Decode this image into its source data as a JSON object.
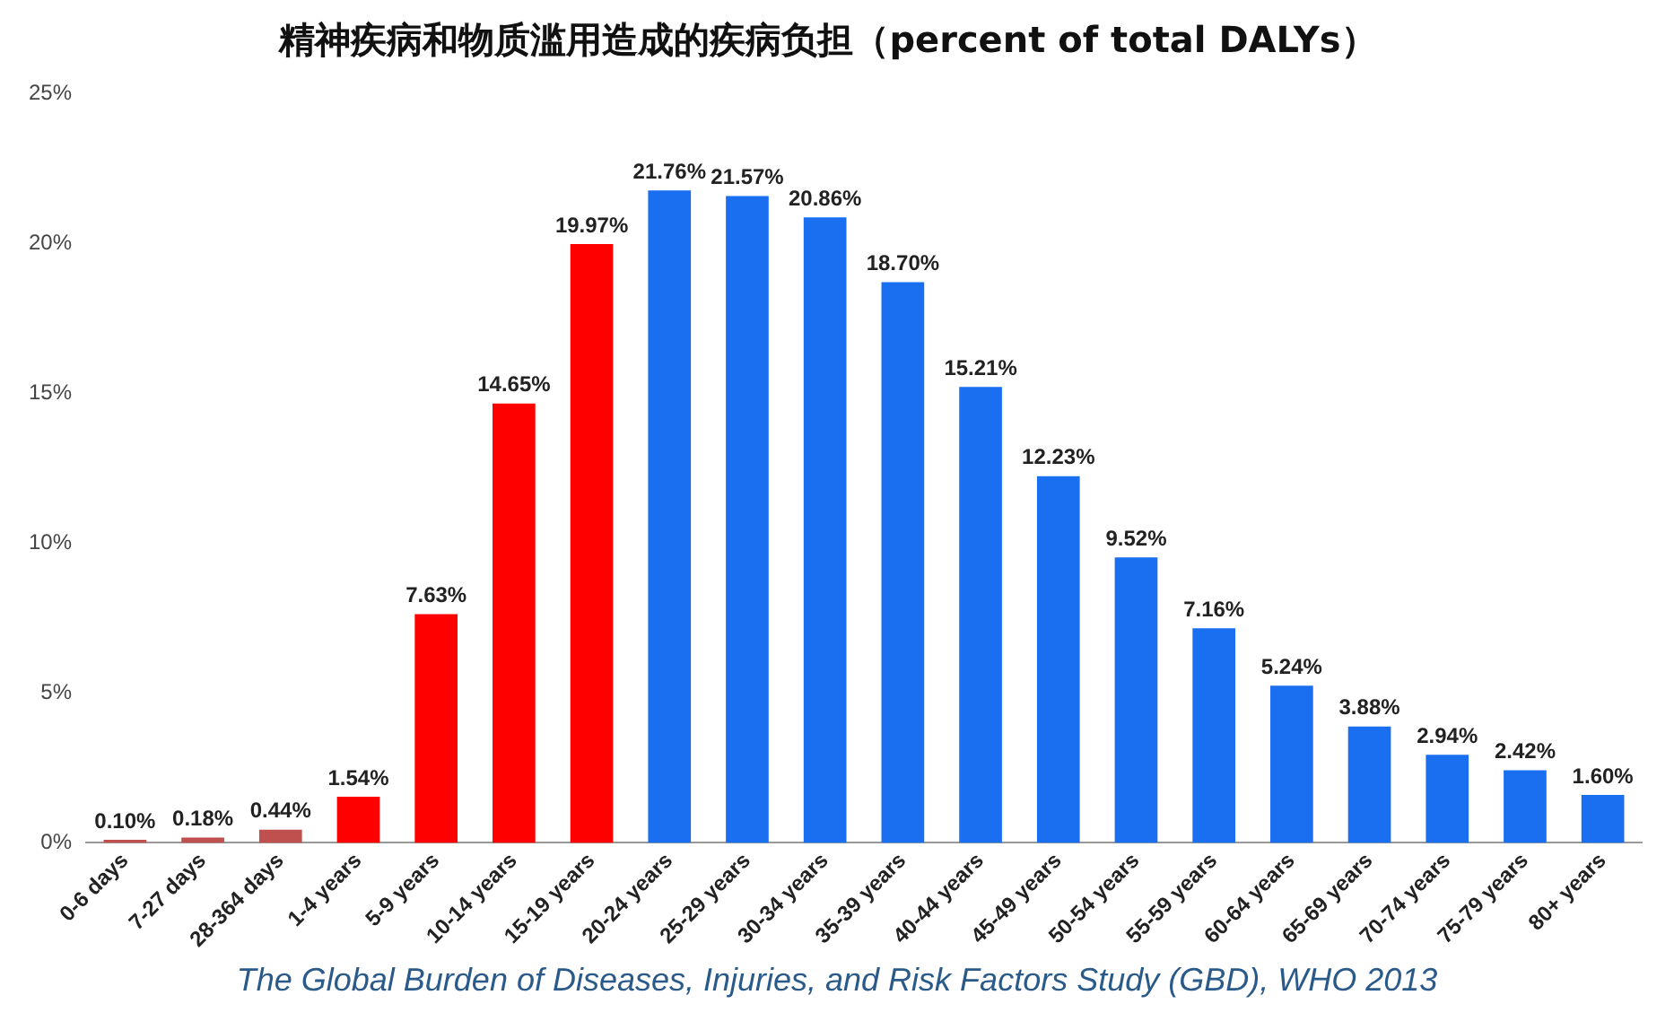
{
  "chart_data": {
    "type": "bar",
    "title": "精神疾病和物质滥用造成的疾病负担（percent of total DALYs）",
    "categories": [
      "0-6 days",
      "7-27 days",
      "28-364 days",
      "1-4 years",
      "5-9 years",
      "10-14 years",
      "15-19 years",
      "20-24 years",
      "25-29 years",
      "30-34 years",
      "35-39 years",
      "40-44 years",
      "45-49 years",
      "50-54 years",
      "55-59 years",
      "60-64 years",
      "65-69 years",
      "70-74 years",
      "75-79 years",
      "80+ years"
    ],
    "values": [
      0.1,
      0.18,
      0.44,
      1.54,
      7.63,
      14.65,
      19.97,
      21.76,
      21.57,
      20.86,
      18.7,
      15.21,
      12.23,
      9.52,
      7.16,
      5.24,
      3.88,
      2.94,
      2.42,
      1.6
    ],
    "value_labels": [
      "0.10%",
      "0.18%",
      "0.44%",
      "1.54%",
      "7.63%",
      "14.65%",
      "19.97%",
      "21.76%",
      "21.57%",
      "20.86%",
      "18.70%",
      "15.21%",
      "12.23%",
      "9.52%",
      "7.16%",
      "5.24%",
      "3.88%",
      "2.94%",
      "2.42%",
      "1.60%"
    ],
    "colors": [
      "#c0504d",
      "#c0504d",
      "#c0504d",
      "#ff0000",
      "#ff0000",
      "#ff0000",
      "#ff0000",
      "#1a6ff0",
      "#1a6ff0",
      "#1a6ff0",
      "#1a6ff0",
      "#1a6ff0",
      "#1a6ff0",
      "#1a6ff0",
      "#1a6ff0",
      "#1a6ff0",
      "#1a6ff0",
      "#1a6ff0",
      "#1a6ff0",
      "#1a6ff0"
    ],
    "ylim": [
      0,
      25
    ],
    "yticks": [
      {
        "value": 0,
        "label": "0%"
      },
      {
        "value": 5,
        "label": "5%"
      },
      {
        "value": 10,
        "label": "10%"
      },
      {
        "value": 15,
        "label": "15%"
      },
      {
        "value": 20,
        "label": "20%"
      },
      {
        "value": 25,
        "label": "25%"
      }
    ],
    "grid": false,
    "legend": false,
    "annotations": [
      "The Global Burden of Diseases, Injuries, and Risk Factors Study (GBD), WHO 2013"
    ]
  }
}
